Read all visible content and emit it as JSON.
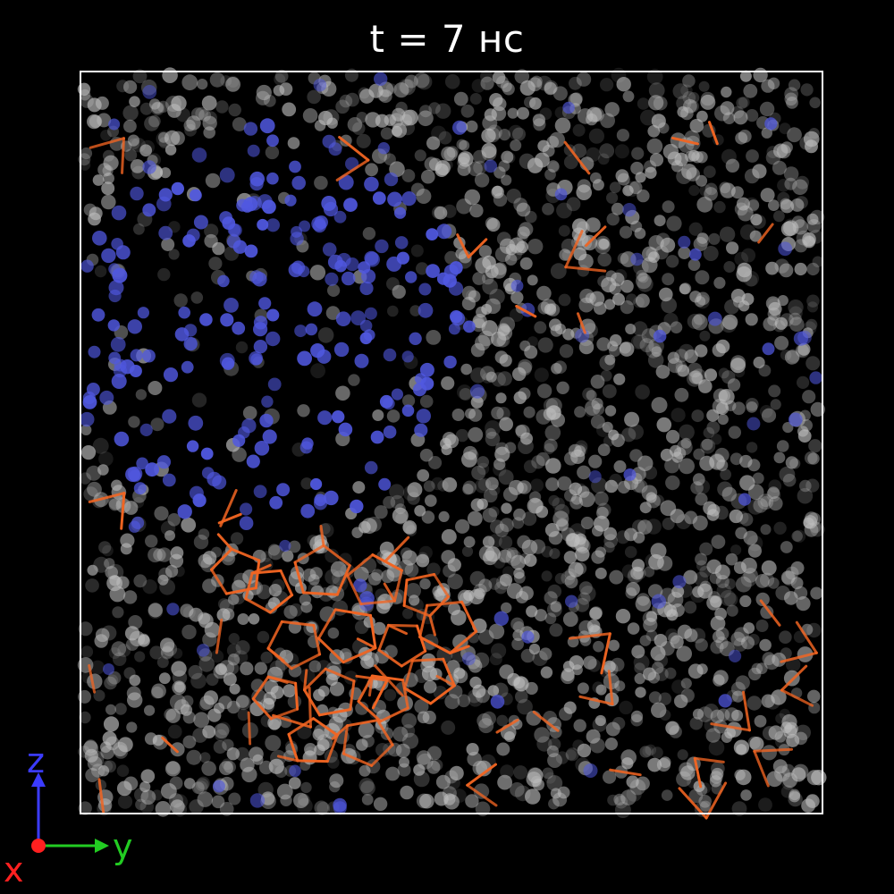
{
  "title": "t = 7 нс",
  "colors": {
    "background": "#000000",
    "box": "#ffffff",
    "solute": "#5058e0",
    "water": "#bdbdbd",
    "hydrate_bond": "#f26522",
    "axis_z": "#3b3bff",
    "axis_y": "#22cc22",
    "axis_x": "#ff2020"
  },
  "axes": {
    "z_label": "z",
    "y_label": "y",
    "x_label": "x",
    "z_icon": "arrow-up-icon",
    "y_icon": "arrow-right-icon",
    "x_icon": "dot-icon"
  },
  "icons": {
    "solute": "blue-sphere-icon",
    "water": "gray-sphere-icon",
    "hydrate": "orange-cage-icon"
  }
}
